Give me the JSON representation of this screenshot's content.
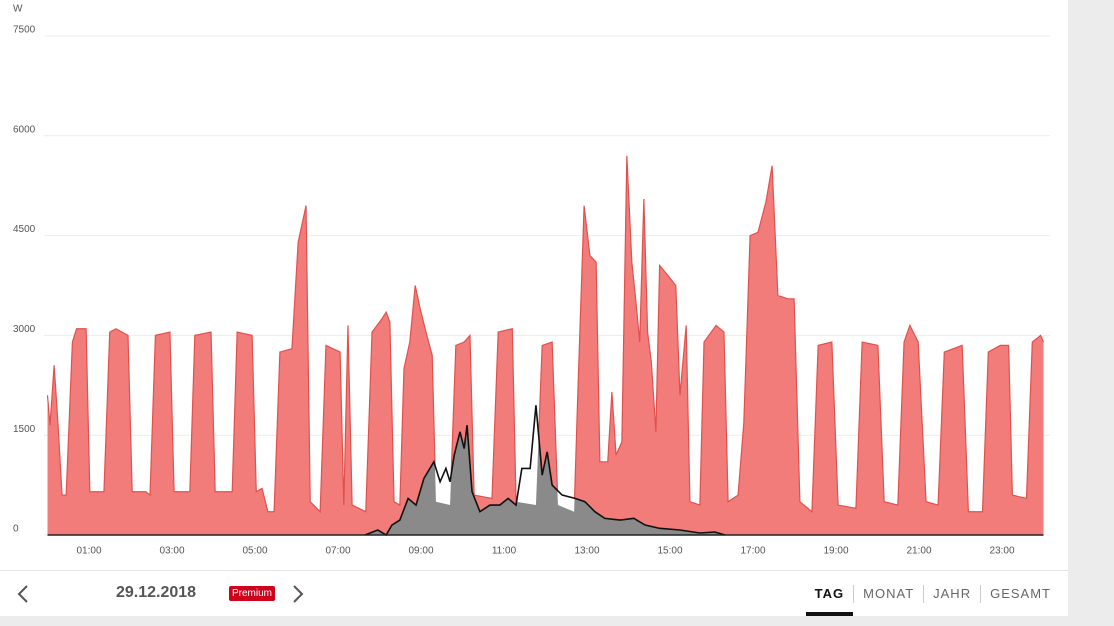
{
  "chart_data": {
    "type": "area",
    "y_unit_label": "W",
    "xlim": [
      0,
      24
    ],
    "ylim": [
      0,
      7500
    ],
    "yticks": [
      0,
      1500,
      3000,
      4500,
      6000,
      7500
    ],
    "xticks": [
      {
        "value": 1,
        "label": "01:00"
      },
      {
        "value": 3,
        "label": "03:00"
      },
      {
        "value": 5,
        "label": "05:00"
      },
      {
        "value": 7,
        "label": "07:00"
      },
      {
        "value": 9,
        "label": "09:00"
      },
      {
        "value": 11,
        "label": "11:00"
      },
      {
        "value": 13,
        "label": "13:00"
      },
      {
        "value": 15,
        "label": "15:00"
      },
      {
        "value": 17,
        "label": "17:00"
      },
      {
        "value": 19,
        "label": "19:00"
      },
      {
        "value": 21,
        "label": "21:00"
      },
      {
        "value": 23,
        "label": "23:00"
      }
    ],
    "grid": true,
    "series": [
      {
        "color": "#f27c7a",
        "line_color": "#e0504d",
        "x": [
          0,
          0.06,
          0.16,
          0.25,
          0.35,
          0.45,
          0.6,
          0.7,
          0.93,
          1.02,
          1.36,
          1.5,
          1.65,
          1.94,
          2.04,
          2.37,
          2.47,
          2.6,
          2.95,
          3.05,
          3.43,
          3.55,
          3.94,
          4.04,
          4.45,
          4.57,
          4.93,
          5.03,
          5.17,
          5.31,
          5.46,
          5.6,
          5.89,
          6.04,
          6.23,
          6.33,
          6.57,
          6.71,
          7.05,
          7.14,
          7.24,
          7.34,
          7.67,
          7.82,
          8.06,
          8.16,
          8.25,
          8.35,
          8.49,
          8.59,
          8.73,
          8.86,
          8.98,
          9.12,
          9.27,
          9.36,
          9.7,
          9.84,
          10.04,
          10.18,
          10.28,
          10.71,
          10.86,
          11.2,
          11.29,
          11.77,
          11.92,
          12.16,
          12.3,
          12.69,
          12.78,
          12.93,
          13.07,
          13.22,
          13.31,
          13.5,
          13.6,
          13.7,
          13.84,
          13.96,
          14.08,
          14.18,
          14.27,
          14.37,
          14.46,
          14.55,
          14.66,
          14.75,
          14.95,
          15.14,
          15.24,
          15.39,
          15.48,
          15.72,
          15.82,
          16.11,
          16.3,
          16.4,
          16.64,
          16.78,
          16.93,
          17.12,
          17.31,
          17.46,
          17.6,
          17.84,
          17.99,
          18.13,
          18.42,
          18.57,
          18.9,
          19.05,
          19.48,
          19.63,
          20.01,
          20.16,
          20.49,
          20.64,
          20.78,
          20.98,
          21.17,
          21.46,
          21.61,
          22.04,
          22.19,
          22.53,
          22.67,
          22.96,
          23.16,
          23.25,
          23.59,
          23.73,
          23.93,
          24
        ],
        "values": [
          2100,
          1650,
          2550,
          1700,
          600,
          600,
          2900,
          3100,
          3100,
          650,
          650,
          3050,
          3100,
          3000,
          650,
          650,
          600,
          3000,
          3050,
          650,
          650,
          3000,
          3050,
          650,
          650,
          3050,
          3000,
          650,
          700,
          350,
          350,
          2750,
          2800,
          4400,
          4950,
          500,
          350,
          2850,
          2750,
          450,
          3150,
          450,
          350,
          3050,
          3250,
          3350,
          3200,
          500,
          450,
          2500,
          2900,
          3750,
          3400,
          3050,
          2700,
          500,
          450,
          2850,
          2900,
          3000,
          600,
          550,
          3050,
          3100,
          500,
          450,
          2850,
          2900,
          450,
          350,
          2150,
          4950,
          4200,
          4100,
          1100,
          1100,
          2150,
          1200,
          1400,
          5700,
          4100,
          3500,
          2900,
          5050,
          3050,
          2600,
          1550,
          4050,
          3900,
          3750,
          2100,
          3150,
          500,
          450,
          2900,
          3150,
          3050,
          500,
          600,
          1700,
          4500,
          4550,
          5000,
          5550,
          3600,
          3550,
          3550,
          500,
          350,
          2850,
          2900,
          450,
          400,
          2900,
          2850,
          500,
          450,
          2900,
          3150,
          2900,
          500,
          450,
          2750,
          2850,
          350,
          350,
          2750,
          2850,
          2850,
          600,
          550,
          2900,
          3000,
          2900
        ]
      },
      {
        "color": "#8a8a8a",
        "line_color": "#111111",
        "x": [
          7.65,
          7.96,
          8.16,
          8.3,
          8.49,
          8.69,
          8.88,
          9.07,
          9.31,
          9.46,
          9.6,
          9.7,
          9.8,
          9.94,
          10.04,
          10.11,
          10.23,
          10.42,
          10.66,
          10.9,
          11.1,
          11.29,
          11.43,
          11.63,
          11.77,
          11.92,
          12.04,
          12.16,
          12.4,
          12.71,
          12.95,
          13.19,
          13.43,
          13.8,
          14.13,
          14.4,
          14.75,
          15.24,
          15.72,
          16.08,
          16.33
        ],
        "values": [
          0,
          75,
          0,
          150,
          225,
          550,
          450,
          850,
          1100,
          800,
          1000,
          800,
          1200,
          1550,
          1300,
          1650,
          650,
          350,
          450,
          450,
          550,
          450,
          1000,
          1000,
          1950,
          900,
          1250,
          750,
          600,
          550,
          500,
          350,
          250,
          225,
          250,
          150,
          100,
          75,
          30,
          45,
          0
        ]
      }
    ]
  },
  "ui": {
    "date": "29.12.2018",
    "badge": "Premium",
    "tabs": [
      "TAG",
      "MONAT",
      "JAHR",
      "GESAMT"
    ],
    "active_tab": 0
  }
}
